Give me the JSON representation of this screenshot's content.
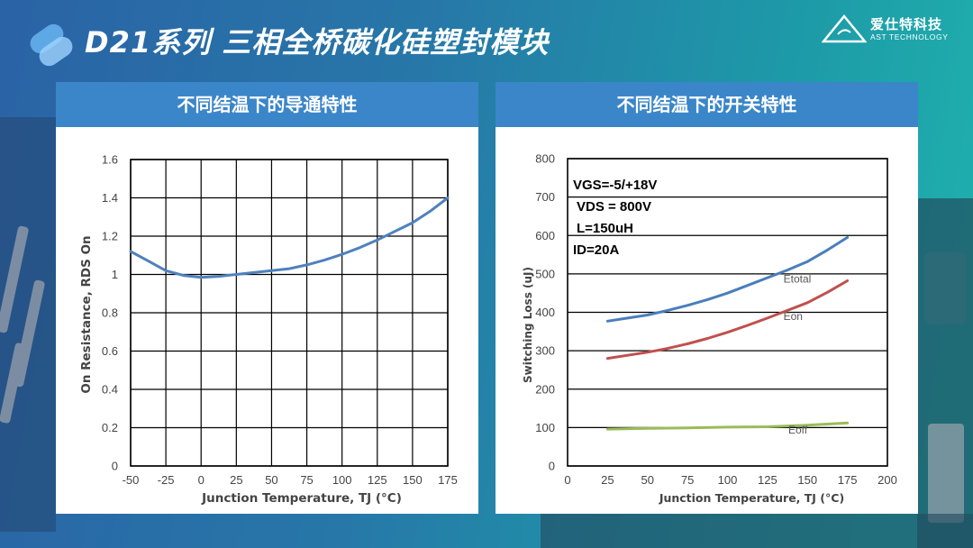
{
  "header": {
    "title": "D21系列 三相全桥碳化硅塑封模块",
    "brand_name": "爱仕特科技",
    "brand_sub": "AST TECHNOLOGY"
  },
  "colors": {
    "panel_header": "#3b86c9",
    "etotal": "#4a7ebb",
    "eon": "#c0504d",
    "eoff": "#9bbb59",
    "rds": "#4f81bd"
  },
  "chart_data": [
    {
      "type": "line",
      "title": "不同结温下的导通特性",
      "xlabel": "Junction Temperature, TJ (°C)",
      "ylabel": "On Resistance, RDS On",
      "xlim": [
        -50,
        175
      ],
      "ylim": [
        0,
        1.6
      ],
      "xticks": [
        -50,
        -25,
        0,
        25,
        50,
        75,
        100,
        125,
        150,
        175
      ],
      "yticks": [
        0,
        0.2,
        0.4,
        0.6,
        0.8,
        1,
        1.2,
        1.4,
        1.6
      ],
      "ytick_labels": [
        "0",
        "0.2",
        "0.4",
        "0.6",
        "0.8",
        "1",
        "1.2",
        "1.4",
        "1.6"
      ],
      "grid": true,
      "series": [
        {
          "x": [
            -50,
            -37.5,
            -25,
            -12.5,
            0,
            12.5,
            25,
            37.5,
            50,
            62.5,
            75,
            87.5,
            100,
            112.5,
            125,
            137.5,
            150,
            162.5,
            175
          ],
          "y": [
            1.12,
            1.07,
            1.02,
            0.995,
            0.985,
            0.99,
            1.0,
            1.01,
            1.02,
            1.03,
            1.05,
            1.075,
            1.105,
            1.14,
            1.18,
            1.225,
            1.27,
            1.33,
            1.4
          ]
        }
      ]
    },
    {
      "type": "line",
      "title": "不同结温下的开关特性",
      "xlabel": "Junction Temperature, TJ (°C)",
      "ylabel": "Switching Loss (uJ)",
      "xlim": [
        0,
        200
      ],
      "ylim": [
        0,
        800
      ],
      "xticks": [
        0,
        25,
        50,
        75,
        100,
        125,
        150,
        175,
        200
      ],
      "yticks": [
        0,
        100,
        200,
        300,
        400,
        500,
        600,
        700,
        800
      ],
      "grid": true,
      "annotations": [
        "VGS=-5/+18V",
        "VDS = 800V",
        "L=150uH",
        "ID=20A"
      ],
      "series": [
        {
          "name": "Etotal",
          "x": [
            25,
            37.5,
            50,
            62.5,
            75,
            87.5,
            100,
            112.5,
            125,
            137.5,
            150,
            162.5,
            175
          ],
          "y": [
            377,
            385,
            393,
            405,
            418,
            433,
            450,
            470,
            490,
            510,
            532,
            562,
            595
          ]
        },
        {
          "name": "Eon",
          "x": [
            25,
            37.5,
            50,
            62.5,
            75,
            87.5,
            100,
            112.5,
            125,
            137.5,
            150,
            162.5,
            175
          ],
          "y": [
            280,
            288,
            296,
            306,
            318,
            332,
            348,
            366,
            385,
            405,
            425,
            452,
            482
          ]
        },
        {
          "name": "Eoff",
          "x": [
            25,
            50,
            75,
            100,
            125,
            150,
            175
          ],
          "y": [
            96,
            98,
            99,
            101,
            102,
            106,
            112
          ]
        }
      ]
    }
  ]
}
